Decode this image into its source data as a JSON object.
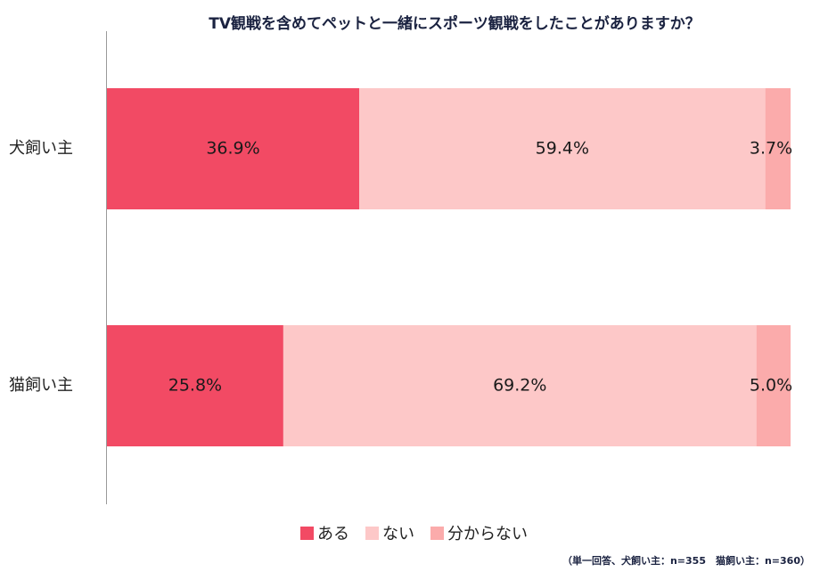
{
  "chart_data": {
    "type": "bar",
    "orientation": "horizontal",
    "stacked": true,
    "percent_stacked": true,
    "title": "TV観戦を含めてペットと一緒にスポーツ観戦をしたことがありますか？",
    "categories": [
      "犬飼い主",
      "猫飼い主"
    ],
    "series": [
      {
        "name": "ある",
        "values": [
          36.9,
          25.8
        ],
        "labels": [
          "36.9%",
          "25.8%"
        ],
        "color": "#f24a64"
      },
      {
        "name": "ない",
        "values": [
          59.4,
          69.2
        ],
        "labels": [
          "59.4%",
          "69.2%"
        ],
        "color": "#fdc8c8"
      },
      {
        "name": "分からない",
        "values": [
          3.7,
          5.0
        ],
        "labels": [
          "3.7%",
          "5.0%"
        ],
        "color": "#fbabab"
      }
    ],
    "xlim": [
      0,
      100
    ],
    "grid": false,
    "legend_position": "bottom",
    "footnote": "（単一回答、犬飼い主：n=355　猫飼い主：n=360）"
  }
}
